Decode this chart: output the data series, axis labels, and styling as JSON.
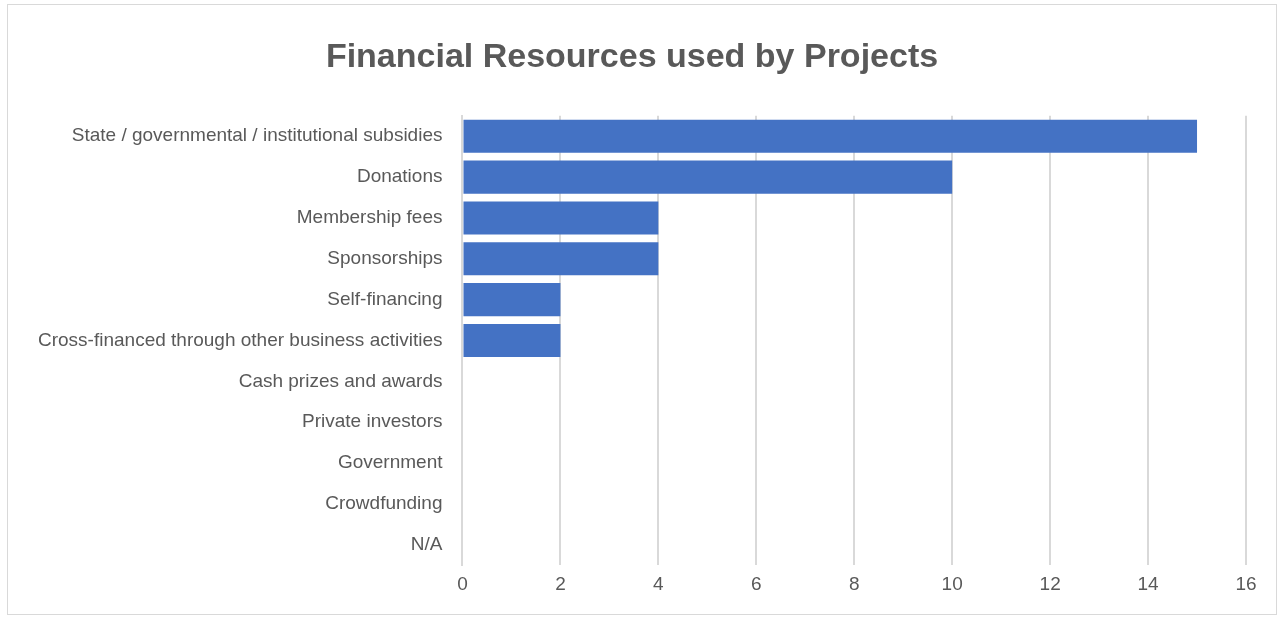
{
  "chart_data": {
    "type": "bar",
    "orientation": "horizontal",
    "title": "Financial Resources used by Projects",
    "categories": [
      "State / governmental / institutional subsidies",
      "Donations",
      "Membership fees",
      "Sponsorships",
      "Self-financing",
      "Cross-financed through other business activities",
      "Cash prizes and awards",
      "Private investors",
      "Government",
      "Crowdfunding",
      "N/A"
    ],
    "values": [
      15,
      10,
      4,
      4,
      2,
      2,
      0,
      0,
      0,
      0,
      0
    ],
    "color": "#4472c4",
    "xlim": [
      0,
      16
    ],
    "xticks": [
      0,
      2,
      4,
      6,
      8,
      10,
      12,
      14,
      16
    ],
    "grid": "x"
  }
}
